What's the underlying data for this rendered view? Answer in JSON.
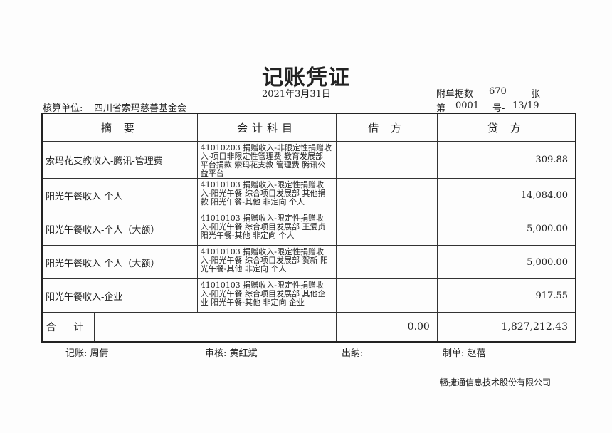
{
  "title": "记账凭证",
  "date": "2021年3月31日",
  "attachments": {
    "label": "附单据数",
    "count": "670",
    "unit": "张"
  },
  "unit": {
    "label": "核算单位:",
    "value": "四川省索玛慈善基金会"
  },
  "number": {
    "prefix": "第",
    "value": "0001",
    "suffix": "号-",
    "page": "13/19"
  },
  "columns": [
    "摘 要",
    "会计科目",
    "借 方",
    "贷 方"
  ],
  "rows": [
    {
      "summary": "索玛花支教收入-腾讯-管理费",
      "account": "41010203 捐赠收入-非限定性捐赠收入-项目非限定性管理费 教育发展部 平台捐款 索玛花支教 管理费 腾讯公益平台",
      "debit": "",
      "credit": "309.88"
    },
    {
      "summary": "阳光午餐收入-个人",
      "account": "41010103 捐赠收入-限定性捐赠收入-阳光午餐 综合项目发展部 其他捐款 阳光午餐-其他 非定向 个人",
      "debit": "",
      "credit": "14,084.00"
    },
    {
      "summary": "阳光午餐收入-个人（大额）",
      "account": "41010103 捐赠收入-限定性捐赠收入-阳光午餐 综合项目发展部 王爱贞 阳光午餐-其他 非定向 个人",
      "debit": "",
      "credit": "5,000.00"
    },
    {
      "summary": "阳光午餐收入-个人（大额）",
      "account": "41010103 捐赠收入-限定性捐赠收入-阳光午餐 综合项目发展部 贺新 阳光午餐-其他 非定向 个人",
      "debit": "",
      "credit": "5,000.00"
    },
    {
      "summary": "阳光午餐收入-企业",
      "account": "41010103 捐赠收入-限定性捐赠收入-阳光午餐 综合项目发展部 其他企业 阳光午餐-其他 非定向 企业",
      "debit": "",
      "credit": "917.55"
    }
  ],
  "total": {
    "label": "合 计",
    "debit": "0.00",
    "credit": "1,827,212.43"
  },
  "footer": {
    "bookkeeper": "记账:  周倩",
    "reviewer": "审核:  黄红斌",
    "cashier": "出纳:",
    "preparer": "制单:  赵蓓"
  },
  "company": "畅捷通信息技术股份有限公司"
}
